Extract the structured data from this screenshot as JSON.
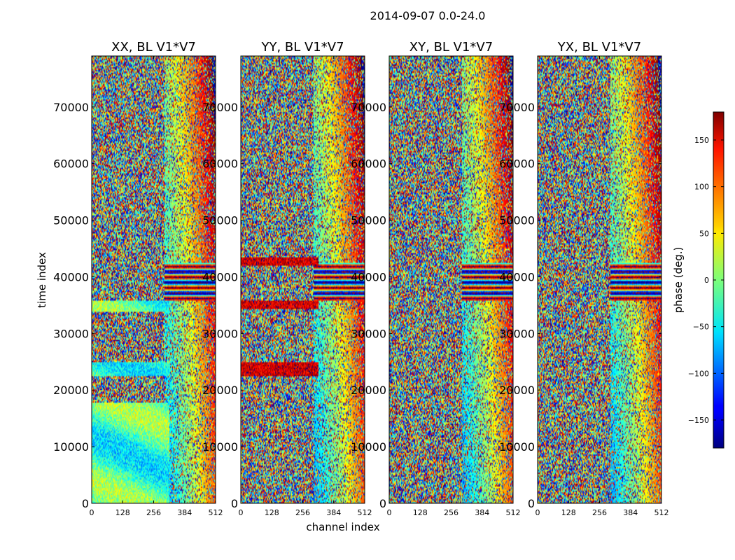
{
  "figure": {
    "suptitle": "2014-09-07 0.0-24.0",
    "xlabel": "channel index",
    "ylabel": "time index"
  },
  "colorbar": {
    "label": "phase (deg.)",
    "colormap": "jet",
    "range": [
      -180,
      180
    ],
    "ticks": [
      -150,
      -100,
      -50,
      0,
      50,
      100,
      150
    ],
    "tick_labels": [
      "−150",
      "−100",
      "−50",
      "0",
      "50",
      "100",
      "150"
    ]
  },
  "chart_data": [
    {
      "type": "heatmap",
      "title": "XX, BL V1*V7",
      "xlabel": "channel index",
      "ylabel": "time index",
      "xlim": [
        0,
        512
      ],
      "ylim": [
        0,
        79000
      ],
      "xticks": [
        0,
        128,
        256,
        384,
        512
      ],
      "yticks": [
        0,
        10000,
        20000,
        30000,
        40000,
        50000,
        60000,
        70000
      ],
      "value": "phase (deg.)",
      "description_of_pattern": "noisy phase; coherent low-channel bands near time 0-18000 and 23000-25000"
    },
    {
      "type": "heatmap",
      "title": "YY, BL V1*V7",
      "xlabel": "channel index",
      "ylabel": "time index",
      "xlim": [
        0,
        512
      ],
      "ylim": [
        0,
        79000
      ],
      "xticks": [
        0,
        128,
        256,
        384,
        512
      ],
      "yticks": [
        0,
        10000,
        20000,
        30000,
        40000,
        50000,
        60000,
        70000
      ],
      "value": "phase (deg.)",
      "description_of_pattern": "noisy phase; red bands near time 23000, 35000, 43000"
    },
    {
      "type": "heatmap",
      "title": "XY, BL V1*V7",
      "xlabel": "channel index",
      "ylabel": "time index",
      "xlim": [
        0,
        512
      ],
      "ylim": [
        0,
        79000
      ],
      "xticks": [
        0,
        128,
        256,
        384,
        512
      ],
      "yticks": [
        0,
        10000,
        20000,
        30000,
        40000,
        50000,
        60000,
        70000
      ],
      "value": "phase (deg.)",
      "description_of_pattern": "mostly noise; striped feature near time 36000-42000"
    },
    {
      "type": "heatmap",
      "title": "YX, BL V1*V7",
      "xlabel": "channel index",
      "ylabel": "time index",
      "xlim": [
        0,
        512
      ],
      "ylim": [
        0,
        79000
      ],
      "xticks": [
        0,
        128,
        256,
        384,
        512
      ],
      "yticks": [
        0,
        10000,
        20000,
        30000,
        40000,
        50000,
        60000,
        70000
      ],
      "value": "phase (deg.)",
      "description_of_pattern": "mostly noise; striped feature near time 37000-42000"
    }
  ]
}
